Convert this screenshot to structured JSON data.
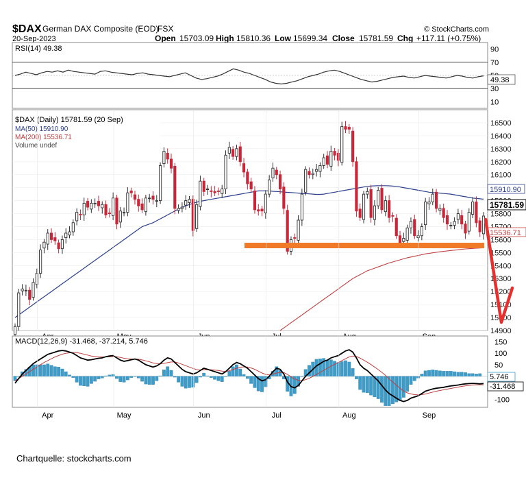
{
  "header": {
    "symbol": "$DAX",
    "name": "German DAX Composite (EOD)",
    "exchange": "FSX",
    "brand": "© StockCharts.com",
    "date": "20-Sep-2023",
    "ohlc": {
      "open_label": "Open",
      "open": "15703.09",
      "high_label": "High",
      "high": "15810.36",
      "low_label": "Low",
      "low": "15699.34",
      "close_label": "Close",
      "close": "15781.59",
      "chg_label": "Chg",
      "chg": "+117.11 (+0.75%)"
    }
  },
  "rsi": {
    "label": "RSI(14) 49.38",
    "last_value": 49.38,
    "last_value_label": "49.38",
    "ticks": [
      90,
      70,
      50,
      30,
      10
    ],
    "levels": [
      70,
      30
    ],
    "path": [
      50,
      52,
      55,
      53,
      51,
      54,
      56,
      55,
      57,
      55,
      58,
      56,
      55,
      54,
      53,
      52,
      56,
      57,
      55,
      54,
      53,
      52,
      51,
      53,
      54,
      52,
      51,
      50,
      49,
      48,
      50,
      52,
      54,
      50,
      46,
      44,
      45,
      47,
      49,
      52,
      56,
      60,
      58,
      55,
      53,
      50,
      47,
      44,
      40,
      38,
      37,
      38,
      40,
      42,
      45,
      48,
      50,
      52,
      55,
      57,
      58,
      56,
      53,
      50,
      47,
      44,
      42,
      40,
      41,
      43,
      45,
      47,
      48,
      49,
      47,
      46,
      48,
      50,
      49,
      48,
      47,
      46,
      48,
      50,
      49,
      47,
      46,
      48,
      49.38
    ]
  },
  "price": {
    "legend_title": "$DAX (Daily) 15781.59 (20 Sep)",
    "legend_ma50": "MA(50) 15910.90",
    "legend_ma200": "MA(200) 15536.71",
    "legend_volume": "Volume undef",
    "ticks": [
      16500,
      16400,
      16300,
      16200,
      16100,
      16000,
      15900,
      15800,
      15700,
      15600,
      15500,
      15400,
      15300,
      15200,
      15100,
      15000,
      14900
    ],
    "tick_labels": [
      "16500",
      "16400",
      "16300",
      "16200",
      "16100",
      "16000",
      "15900",
      "15800",
      "15700",
      "15600",
      "15500",
      "15400",
      "15300",
      "15200",
      "15100",
      "15000",
      "14900"
    ],
    "ma50_last_label": "15910.90",
    "close_last_label": "15781.59",
    "ma200_last_label": "15536.71",
    "ma50_last": 15910.9,
    "close_last": 15781.59,
    "ma200_last": 15536.71
  },
  "macd": {
    "label": "MACD(12,26,9) -31.468, -37.214, 5.746",
    "ticks": [
      150,
      100,
      50,
      0,
      -50,
      -100
    ],
    "tick_labels": [
      "150",
      "100",
      "50",
      "0",
      "-50",
      "-100"
    ],
    "hist_last_label": "5.746",
    "macd_last_label": "-31.468",
    "hist_last": 5.746,
    "macd_last": -31.468
  },
  "x_axis": {
    "months": [
      "Apr",
      "May",
      "Jun",
      "Jul",
      "Aug",
      "Sep"
    ]
  },
  "colors": {
    "up": "#2e2e2e",
    "down": "#c6283a",
    "ma50": "#2b3f8c",
    "ma200": "#c04040",
    "hist": "#3e9cc9",
    "annotation_support": "#f07a28",
    "annotation_arrow": "#e53030"
  },
  "caption": "Chartquelle: stockcharts.com",
  "chart_data": {
    "type": "candlestick",
    "title": "$DAX German DAX Composite (EOD) FSX",
    "x": [
      "2023-03-20",
      "2023-03-21",
      "2023-03-22",
      "2023-03-23",
      "2023-03-24",
      "2023-03-27",
      "2023-03-28",
      "2023-03-29",
      "2023-03-30",
      "2023-03-31",
      "2023-04-03",
      "2023-04-04",
      "2023-04-05",
      "2023-04-06",
      "2023-04-11",
      "2023-04-12",
      "2023-04-13",
      "2023-04-14",
      "2023-04-17",
      "2023-04-18",
      "2023-04-19",
      "2023-04-20",
      "2023-04-21",
      "2023-04-24",
      "2023-04-25",
      "2023-04-26",
      "2023-04-27",
      "2023-04-28",
      "2023-05-02",
      "2023-05-03",
      "2023-05-04",
      "2023-05-05",
      "2023-05-08",
      "2023-05-09",
      "2023-05-10",
      "2023-05-11",
      "2023-05-12",
      "2023-05-15",
      "2023-05-16",
      "2023-05-17",
      "2023-05-18",
      "2023-05-19",
      "2023-05-22",
      "2023-05-23",
      "2023-05-24",
      "2023-05-25",
      "2023-05-26",
      "2023-05-29",
      "2023-05-30",
      "2023-05-31",
      "2023-06-01",
      "2023-06-02",
      "2023-06-05",
      "2023-06-06",
      "2023-06-07",
      "2023-06-08",
      "2023-06-09",
      "2023-06-12",
      "2023-06-13",
      "2023-06-14",
      "2023-06-15",
      "2023-06-16",
      "2023-06-19",
      "2023-06-20",
      "2023-06-21",
      "2023-06-22",
      "2023-06-23",
      "2023-06-26",
      "2023-06-27",
      "2023-06-28",
      "2023-06-29",
      "2023-06-30",
      "2023-07-03",
      "2023-07-04",
      "2023-07-05",
      "2023-07-06",
      "2023-07-07",
      "2023-07-10",
      "2023-07-11",
      "2023-07-12",
      "2023-07-13",
      "2023-07-14",
      "2023-07-17",
      "2023-07-18",
      "2023-07-19",
      "2023-07-20",
      "2023-07-21",
      "2023-07-24",
      "2023-07-25",
      "2023-07-26",
      "2023-07-27",
      "2023-07-28",
      "2023-07-31",
      "2023-08-01",
      "2023-08-02",
      "2023-08-03",
      "2023-08-04",
      "2023-08-07",
      "2023-08-08",
      "2023-08-09",
      "2023-08-10",
      "2023-08-11",
      "2023-08-14",
      "2023-08-15",
      "2023-08-16",
      "2023-08-17",
      "2023-08-18",
      "2023-08-21",
      "2023-08-22",
      "2023-08-23",
      "2023-08-24",
      "2023-08-25",
      "2023-08-28",
      "2023-08-29",
      "2023-08-30",
      "2023-08-31",
      "2023-09-01",
      "2023-09-04",
      "2023-09-05",
      "2023-09-06",
      "2023-09-07",
      "2023-09-08",
      "2023-09-11",
      "2023-09-12",
      "2023-09-13",
      "2023-09-14",
      "2023-09-15",
      "2023-09-18",
      "2023-09-19",
      "2023-09-20"
    ],
    "close": [
      14930,
      15190,
      15220,
      15210,
      15140,
      15270,
      15340,
      15520,
      15580,
      15650,
      15600,
      15590,
      15530,
      15600,
      15650,
      15660,
      15730,
      15810,
      15790,
      15880,
      15850,
      15880,
      15880,
      15860,
      15870,
      15790,
      15800,
      15920,
      15720,
      15820,
      15810,
      15960,
      15960,
      15910,
      15860,
      15830,
      15920,
      15920,
      15910,
      15900,
      16170,
      16280,
      16220,
      16150,
      15840,
      15840,
      15850,
      15900,
      15910,
      15670,
      15870,
      16050,
      15970,
      15990,
      15970,
      15960,
      15970,
      15990,
      16250,
      16310,
      16240,
      16300,
      16200,
      16120,
      16030,
      15990,
      15830,
      15820,
      15820,
      15950,
      16060,
      16150,
      16100,
      15990,
      15840,
      15510,
      15600,
      15610,
      15750,
      15950,
      16140,
      16100,
      16110,
      16140,
      16170,
      16230,
      16180,
      16280,
      16250,
      16210,
      16470,
      16450,
      16450,
      16200,
      15820,
      15770,
      15950,
      15970,
      15770,
      15860,
      15980,
      15830,
      15900,
      15770,
      15780,
      15630,
      15570,
      15610,
      15690,
      15740,
      15630,
      15630,
      15700,
      15890,
      15890,
      15950,
      15840,
      15840,
      15770,
      15720,
      15710,
      15740,
      15800,
      15720,
      15650,
      15810,
      15890,
      15730,
      15660,
      15781.59
    ],
    "ma50": [
      15000,
      15020,
      15040,
      15060,
      15080,
      15100,
      15120,
      15140,
      15160,
      15180,
      15200,
      15220,
      15240,
      15260,
      15280,
      15300,
      15320,
      15340,
      15360,
      15380,
      15400,
      15420,
      15440,
      15460,
      15480,
      15500,
      15520,
      15540,
      15560,
      15580,
      15600,
      15620,
      15640,
      15660,
      15680,
      15700,
      15710,
      15720,
      15730,
      15745,
      15760,
      15775,
      15790,
      15805,
      15820,
      15835,
      15850,
      15860,
      15870,
      15880,
      15888,
      15895,
      15900,
      15905,
      15910,
      15915,
      15920,
      15925,
      15930,
      15935,
      15940,
      15945,
      15950,
      15955,
      15960,
      15965,
      15970,
      15975,
      15975,
      15975,
      15975,
      15972,
      15970,
      15968,
      15966,
      15964,
      15962,
      15960,
      15958,
      15956,
      15954,
      15952,
      15950,
      15948,
      15948,
      15950,
      15955,
      15960,
      15965,
      15970,
      15975,
      15980,
      15985,
      15990,
      15995,
      16000,
      16005,
      16010,
      16012,
      16014,
      16015,
      16015,
      16015,
      16014,
      16012,
      16010,
      16005,
      16000,
      15995,
      15990,
      15985,
      15980,
      15975,
      15970,
      15965,
      15962,
      15960,
      15958,
      15955,
      15952,
      15950,
      15945,
      15940,
      15935,
      15930,
      15925,
      15920,
      15917,
      15914,
      15910.9
    ],
    "ma200": [
      null,
      null,
      null,
      null,
      null,
      null,
      null,
      null,
      null,
      null,
      null,
      null,
      null,
      null,
      null,
      null,
      null,
      null,
      null,
      null,
      null,
      null,
      null,
      null,
      null,
      null,
      null,
      null,
      null,
      null,
      null,
      null,
      null,
      null,
      null,
      null,
      null,
      null,
      null,
      null,
      null,
      null,
      null,
      null,
      null,
      null,
      null,
      null,
      null,
      null,
      null,
      null,
      null,
      null,
      null,
      null,
      null,
      null,
      null,
      null,
      null,
      null,
      null,
      null,
      null,
      null,
      null,
      null,
      null,
      null,
      null,
      null,
      null,
      14900,
      14920,
      14940,
      14960,
      14980,
      15000,
      15020,
      15040,
      15060,
      15080,
      15100,
      15120,
      15140,
      15160,
      15180,
      15200,
      15220,
      15240,
      15260,
      15280,
      15300,
      15315,
      15330,
      15345,
      15360,
      15370,
      15380,
      15390,
      15400,
      15410,
      15420,
      15428,
      15436,
      15444,
      15452,
      15460,
      15466,
      15472,
      15478,
      15484,
      15490,
      15494,
      15498,
      15502,
      15506,
      15510,
      15513,
      15516,
      15519,
      15522,
      15525,
      15528,
      15530,
      15532,
      15534,
      15535,
      15536.71
    ],
    "macd": [
      -30,
      -10,
      10,
      25,
      40,
      55,
      65,
      75,
      85,
      95,
      100,
      105,
      110,
      112,
      110,
      105,
      100,
      90,
      80,
      75,
      70,
      72,
      75,
      78,
      80,
      85,
      88,
      90,
      80,
      70,
      65,
      68,
      72,
      75,
      70,
      60,
      50,
      45,
      40,
      45,
      55,
      70,
      80,
      75,
      60,
      45,
      30,
      20,
      15,
      10,
      15,
      25,
      35,
      30,
      25,
      20,
      15,
      10,
      20,
      35,
      50,
      60,
      55,
      45,
      35,
      20,
      5,
      -10,
      -20,
      -15,
      0,
      20,
      35,
      30,
      10,
      -25,
      -45,
      -50,
      -40,
      -20,
      0,
      15,
      30,
      45,
      55,
      65,
      70,
      80,
      85,
      90,
      100,
      110,
      115,
      105,
      80,
      50,
      35,
      25,
      10,
      -5,
      -20,
      -40,
      -60,
      -75,
      -85,
      -95,
      -105,
      -110,
      -105,
      -95,
      -90,
      -85,
      -75,
      -65,
      -60,
      -55,
      -52,
      -50,
      -48,
      -45,
      -42,
      -40,
      -38,
      -35,
      -33,
      -32,
      -31,
      -32,
      -33,
      -31.468
    ],
    "macd_signal": [
      -20,
      -10,
      0,
      10,
      20,
      30,
      40,
      50,
      60,
      68,
      76,
      84,
      90,
      96,
      100,
      102,
      103,
      103,
      100,
      96,
      92,
      88,
      86,
      84,
      84,
      84,
      85,
      86,
      85,
      82,
      78,
      76,
      75,
      75,
      74,
      71,
      67,
      63,
      58,
      55,
      54,
      56,
      59,
      62,
      62,
      58,
      52,
      46,
      40,
      34,
      29,
      27,
      28,
      29,
      28,
      27,
      25,
      22,
      21,
      24,
      29,
      35,
      39,
      41,
      40,
      36,
      30,
      22,
      14,
      8,
      6,
      9,
      14,
      17,
      16,
      8,
      -2,
      -12,
      -18,
      -19,
      -15,
      -9,
      -1,
      8,
      17,
      26,
      35,
      44,
      52,
      60,
      68,
      76,
      84,
      88,
      86,
      79,
      70,
      61,
      51,
      40,
      29,
      17,
      4,
      -11,
      -25,
      -39,
      -52,
      -64,
      -72,
      -77,
      -80,
      -81,
      -80,
      -77,
      -73,
      -69,
      -65,
      -62,
      -59,
      -56,
      -53,
      -50,
      -47,
      -44,
      -42,
      -40,
      -38,
      -37.5,
      -37.3,
      -37.214
    ],
    "macd_hist": [
      -10,
      0,
      10,
      15,
      20,
      25,
      25,
      25,
      25,
      27,
      24,
      21,
      20,
      16,
      10,
      3,
      -3,
      -13,
      -20,
      -21,
      -22,
      -16,
      -11,
      -6,
      -4,
      1,
      3,
      4,
      -5,
      -12,
      -13,
      -8,
      -3,
      0,
      -4,
      -11,
      -17,
      -18,
      -18,
      -10,
      1,
      14,
      21,
      13,
      -2,
      -13,
      -22,
      -26,
      -25,
      -24,
      -14,
      -2,
      7,
      1,
      -3,
      -7,
      -10,
      -12,
      -1,
      11,
      21,
      25,
      16,
      4,
      -5,
      -16,
      -25,
      -32,
      -34,
      -23,
      -6,
      11,
      21,
      13,
      -6,
      -33,
      -43,
      -38,
      -22,
      -1,
      15,
      24,
      31,
      37,
      38,
      39,
      35,
      36,
      33,
      30,
      32,
      34,
      31,
      17,
      -6,
      -29,
      -35,
      -36,
      -41,
      -45,
      -49,
      -57,
      -64,
      -64,
      -60,
      -56,
      -53,
      -46,
      -33,
      -18,
      -10,
      -4,
      5,
      12,
      13,
      14,
      13,
      12,
      11,
      11,
      11,
      10,
      9,
      9,
      8,
      6,
      6,
      5,
      5.746
    ],
    "rsi": {
      "name": "RSI(14)",
      "last": 49.38,
      "levels": [
        70,
        30
      ]
    },
    "ylim": [
      14900,
      16600
    ],
    "annotations": [
      "support line near 15450",
      "downward arrow toward 15000"
    ]
  }
}
